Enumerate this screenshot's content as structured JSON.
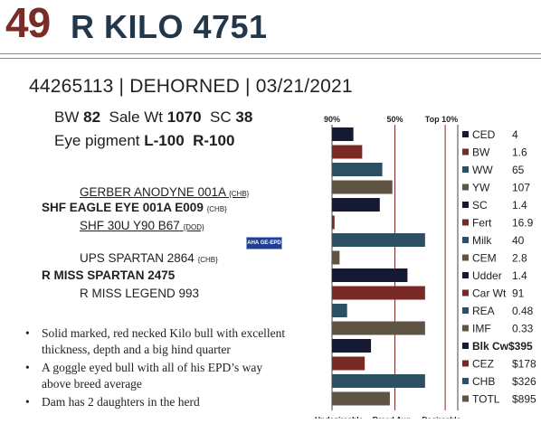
{
  "header": {
    "lot": "49",
    "name": "R KILO 4751"
  },
  "id_line": "44265113 | DEHORNED | 03/21/2021",
  "performance": {
    "bw_label": "BW",
    "bw_value": "82",
    "sale_wt_label": "Sale Wt",
    "sale_wt_value": "1070",
    "sc_label": "SC",
    "sc_value": "38",
    "eye_label": "Eye pigment",
    "eye_left": "L-100",
    "eye_right": "R-100"
  },
  "pedigree": {
    "sire_sire": {
      "name": "GERBER ANODYNE 001A",
      "tag": "{CHB}"
    },
    "sire": {
      "name": "SHF EAGLE EYE 001A E009",
      "tag": "{CHB}"
    },
    "sire_dam": {
      "name": "SHF 30U Y90 B67",
      "tag": "{DOD}"
    },
    "dam_sire": {
      "name": "UPS SPARTAN 2864",
      "tag": "{CHB}"
    },
    "dam": {
      "name": "R MISS SPARTAN 2475",
      "tag": ""
    },
    "dam_dam": {
      "name": "R MISS LEGEND 993",
      "tag": ""
    },
    "logo_text": "AHA GE-EPD"
  },
  "notes": [
    "Solid marked, red necked Kilo bull with excellent thickness, depth and a big hind quarter",
    "A goggle eyed bull with all of his EPD’s way above breed average",
    "Dam has 2 daughters in the herd"
  ],
  "chart_data": {
    "type": "bar",
    "orientation": "horizontal",
    "x_ticks": [
      "90%",
      "50%",
      "Top 10%"
    ],
    "footer": "Undesireable -- Breed Avg. -- Desireable",
    "colors": {
      "navy": "#141a34",
      "red": "#7a2a24",
      "teal": "#2c4f64",
      "olive": "#5f5444",
      "grid": "#7a2d26"
    },
    "scale_note": "values are percentile-rank bar lengths (0 = 90% mark, 50 = breed avg, 100 = right edge)",
    "traits": [
      {
        "label": "CED",
        "value": "4",
        "bar": 17,
        "color": "navy",
        "bold": false
      },
      {
        "label": "BW",
        "value": "1.6",
        "bar": 24,
        "color": "red",
        "bold": false
      },
      {
        "label": "WW",
        "value": "65",
        "bar": 40,
        "color": "teal",
        "bold": false
      },
      {
        "label": "YW",
        "value": "107",
        "bar": 48,
        "color": "olive",
        "bold": false
      },
      {
        "label": "SC",
        "value": "1.4",
        "bar": 38,
        "color": "navy",
        "bold": false
      },
      {
        "label": "Fert",
        "value": "16.9",
        "bar": 2,
        "color": "red",
        "bold": false
      },
      {
        "label": "Milk",
        "value": "40",
        "bar": 74,
        "color": "teal",
        "bold": false
      },
      {
        "label": "CEM",
        "value": "2.8",
        "bar": 6,
        "color": "olive",
        "bold": false
      },
      {
        "label": "Udder",
        "value": "1.4",
        "bar": 60,
        "color": "navy",
        "bold": false
      },
      {
        "label": "Car Wt",
        "value": "91",
        "bar": 74,
        "color": "red",
        "bold": false
      },
      {
        "label": "REA",
        "value": "0.48",
        "bar": 12,
        "color": "teal",
        "bold": false
      },
      {
        "label": "IMF",
        "value": "0.33",
        "bar": 74,
        "color": "olive",
        "bold": false
      },
      {
        "label": "Blk Cw",
        "value": "$395",
        "bar": 31,
        "color": "navy",
        "bold": true
      },
      {
        "label": "CEZ",
        "value": "$178",
        "bar": 26,
        "color": "red",
        "bold": false
      },
      {
        "label": "CHB",
        "value": "$326",
        "bar": 74,
        "color": "teal",
        "bold": false
      },
      {
        "label": "TOTL",
        "value": "$895",
        "bar": 46,
        "color": "olive",
        "bold": false
      }
    ]
  }
}
